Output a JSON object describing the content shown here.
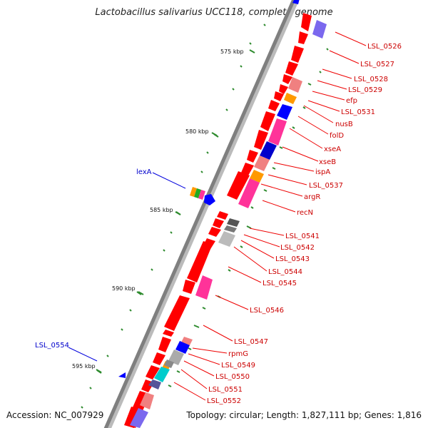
{
  "title": "Lactobacillus salivarius UCC118, complete genome",
  "footer": {
    "accession": "Accession: NC_007929",
    "summary": "Topology: circular; Length: 1,827,111 bp; Genes: 1,816"
  },
  "scale_marks": [
    "575 kbp",
    "580 kbp",
    "585 kbp",
    "590 kbp",
    "595 kbp"
  ],
  "gene_labels": [
    "LSL_0526",
    "LSL_0527",
    "LSL_0528",
    "LSL_0529",
    "efp",
    "LSL_0531",
    "nusB",
    "folD",
    "xseA",
    "xseB",
    "ispA",
    "LSL_0537",
    "argR",
    "recN",
    "LSL_0541",
    "LSL_0542",
    "LSL_0543",
    "LSL_0544",
    "LSL_0545",
    "LSL_0546",
    "LSL_0547",
    "rpmG",
    "LSL_0549",
    "LSL_0550",
    "LSL_0551",
    "LSL_0552"
  ],
  "forward_labels": [
    "lexA",
    "LSL_0554"
  ],
  "colors": {
    "reverse_gene": "#ff0000",
    "forward_gene": "#0000ff",
    "reverse_label": "#cc0000",
    "forward_label": "#0000cc",
    "backbone": "#888888",
    "tick": "#228B22"
  }
}
